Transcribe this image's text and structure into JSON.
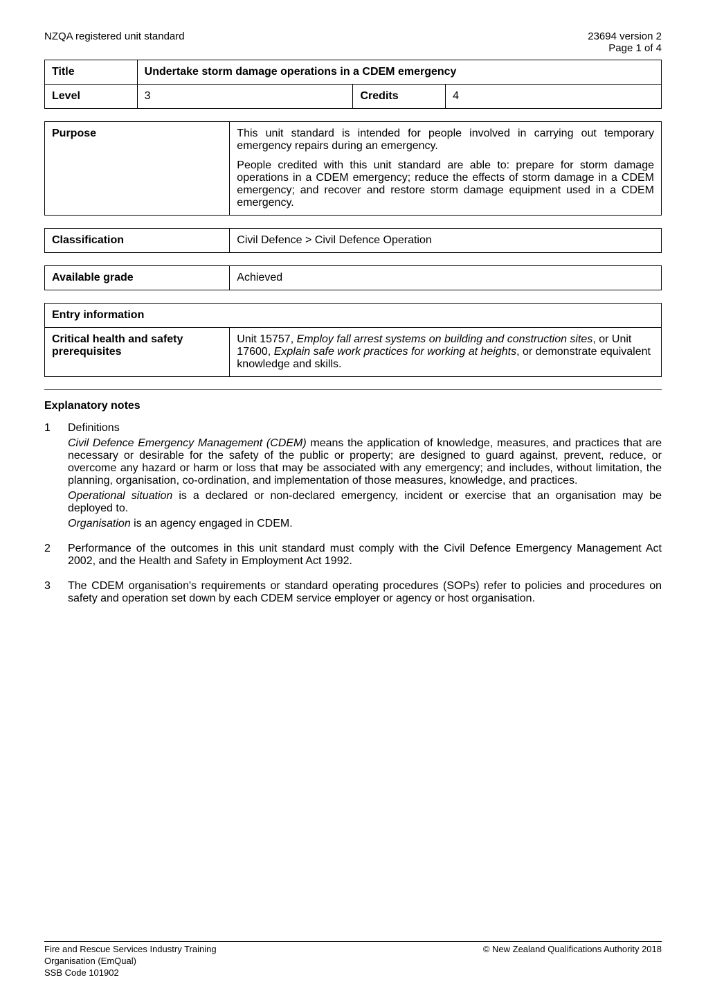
{
  "header": {
    "left": "NZQA registered unit standard",
    "right_line1": "23694 version 2",
    "right_line2": "Page 1 of 4"
  },
  "title_table": {
    "title_label": "Title",
    "title_value": "Undertake storm damage operations in a CDEM emergency",
    "level_label": "Level",
    "level_value": "3",
    "credits_label": "Credits",
    "credits_value": "4"
  },
  "purpose": {
    "label": "Purpose",
    "para1": "This unit standard is intended for people involved in carrying out temporary emergency repairs during an emergency.",
    "para2": "People credited with this unit standard are able to: prepare for storm damage operations in a CDEM emergency; reduce the effects of storm damage in a CDEM emergency; and recover and restore storm damage equipment used in a CDEM emergency."
  },
  "classification": {
    "label": "Classification",
    "value": "Civil Defence > Civil Defence Operation"
  },
  "grade": {
    "label": "Available grade",
    "value": "Achieved"
  },
  "entry": {
    "heading": "Entry information",
    "row_label": "Critical health and safety prerequisites",
    "row_value_pre": "Unit 15757, ",
    "row_value_em1": "Employ fall arrest systems on building and construction sites",
    "row_value_mid": ", or Unit 17600, ",
    "row_value_em2": "Explain safe work practices for working at heights",
    "row_value_post": ", or demonstrate equivalent knowledge and skills."
  },
  "explanatory": {
    "heading": "Explanatory notes",
    "note1": {
      "num": "1",
      "label": "Definitions",
      "p1_em": "Civil Defence Emergency Management (CDEM)",
      "p1_rest": " means the application of knowledge, measures, and practices that are necessary or desirable for the safety of the public or property; are designed to guard against, prevent, reduce, or overcome any hazard or harm or loss that may be associated with any emergency; and includes, without limitation, the planning, organisation, co-ordination, and implementation of those measures, knowledge, and practices.",
      "p2_em": "Operational situation",
      "p2_rest": " is a declared or non-declared emergency, incident or exercise that an organisation may be deployed to.",
      "p3_em": "Organisation",
      "p3_rest": " is an agency engaged in CDEM."
    },
    "note2": {
      "num": "2",
      "text": "Performance of the outcomes in this unit standard must comply with the Civil Defence Emergency Management Act 2002, and the Health and Safety in Employment Act 1992."
    },
    "note3": {
      "num": "3",
      "text": "The CDEM organisation's requirements or standard operating procedures (SOPs) refer to policies and procedures on safety and operation set down by each CDEM service employer or agency or host organisation."
    }
  },
  "footer": {
    "left_line1": "Fire and Rescue Services Industry Training",
    "left_line2": "Organisation (EmQual)",
    "left_line3": "SSB Code 101902",
    "right": "© New Zealand Qualifications Authority 2018"
  }
}
